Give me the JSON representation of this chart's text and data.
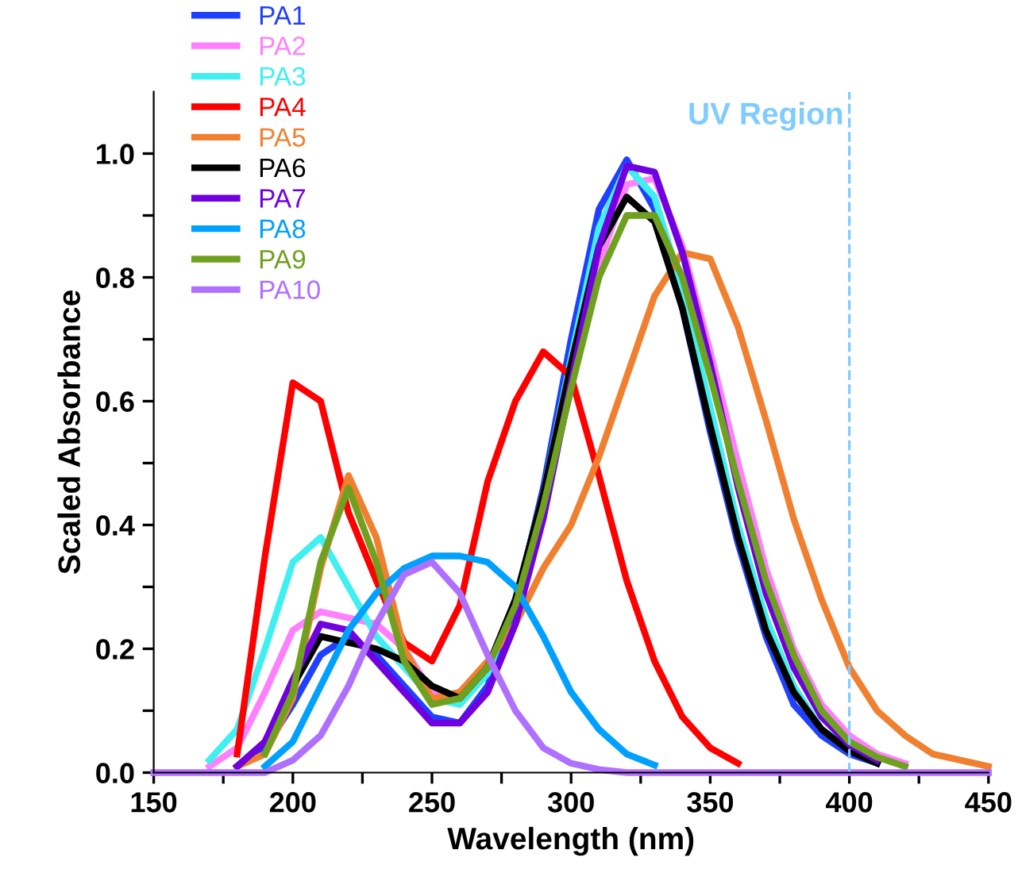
{
  "chart_data": {
    "type": "line",
    "xlabel": "Wavelength (nm)",
    "ylabel": "Scaled Absorbance",
    "x": [
      150,
      160,
      170,
      180,
      190,
      200,
      210,
      220,
      230,
      240,
      250,
      260,
      270,
      280,
      290,
      300,
      310,
      320,
      330,
      340,
      350,
      360,
      370,
      380,
      390,
      400,
      410,
      420,
      430,
      440,
      450
    ],
    "series": [
      {
        "name": "PA1",
        "color": "#2040ff",
        "values": [
          null,
          null,
          null,
          0.01,
          0.04,
          0.11,
          0.19,
          0.22,
          0.19,
          0.14,
          0.09,
          0.08,
          0.14,
          0.27,
          0.46,
          0.7,
          0.91,
          0.99,
          0.91,
          0.75,
          0.55,
          0.37,
          0.22,
          0.11,
          0.06,
          0.03,
          0.015,
          null,
          null,
          null,
          null
        ]
      },
      {
        "name": "PA2",
        "color": "#ff80ff",
        "values": [
          null,
          null,
          0.01,
          0.04,
          0.13,
          0.23,
          0.26,
          0.25,
          0.24,
          0.2,
          0.13,
          0.12,
          0.17,
          0.28,
          0.43,
          0.62,
          0.82,
          0.95,
          0.96,
          0.85,
          0.68,
          0.5,
          0.33,
          0.2,
          0.11,
          0.06,
          0.03,
          0.015,
          null,
          null,
          null
        ]
      },
      {
        "name": "PA3",
        "color": "#40f0f0",
        "values": [
          null,
          null,
          0.02,
          0.07,
          0.2,
          0.34,
          0.38,
          0.3,
          0.22,
          0.17,
          0.12,
          0.11,
          0.16,
          0.28,
          0.45,
          0.67,
          0.88,
          0.98,
          0.93,
          0.78,
          0.59,
          0.4,
          0.25,
          0.14,
          0.07,
          0.04,
          0.02,
          null,
          null,
          null,
          null
        ]
      },
      {
        "name": "PA4",
        "color": "#ff0000",
        "values": [
          null,
          null,
          null,
          0.03,
          0.35,
          0.63,
          0.6,
          0.42,
          0.31,
          0.21,
          0.18,
          0.27,
          0.47,
          0.6,
          0.68,
          0.64,
          0.48,
          0.31,
          0.18,
          0.09,
          0.04,
          0.015,
          null,
          null,
          null,
          null,
          null,
          null,
          null,
          null,
          null
        ]
      },
      {
        "name": "PA5",
        "color": "#f08030",
        "values": [
          null,
          null,
          null,
          0.01,
          0.03,
          0.12,
          0.33,
          0.48,
          0.38,
          0.2,
          0.12,
          0.13,
          0.18,
          0.24,
          0.33,
          0.4,
          0.51,
          0.64,
          0.77,
          0.84,
          0.83,
          0.72,
          0.57,
          0.41,
          0.28,
          0.17,
          0.1,
          0.06,
          0.03,
          0.02,
          0.01
        ]
      },
      {
        "name": "PA6",
        "color": "#000000",
        "values": [
          null,
          null,
          null,
          0.01,
          0.05,
          0.14,
          0.22,
          0.21,
          0.2,
          0.18,
          0.14,
          0.12,
          0.17,
          0.28,
          0.45,
          0.66,
          0.85,
          0.93,
          0.89,
          0.75,
          0.56,
          0.38,
          0.23,
          0.13,
          0.07,
          0.035,
          0.015,
          null,
          null,
          null,
          null
        ]
      },
      {
        "name": "PA7",
        "color": "#7000e0",
        "values": [
          null,
          null,
          null,
          0.01,
          0.05,
          0.15,
          0.24,
          0.23,
          0.18,
          0.13,
          0.08,
          0.08,
          0.13,
          0.24,
          0.41,
          0.63,
          0.85,
          0.98,
          0.97,
          0.84,
          0.66,
          0.46,
          0.29,
          0.17,
          0.09,
          0.045,
          0.02,
          null,
          null,
          null,
          null
        ]
      },
      {
        "name": "PA8",
        "color": "#00a0ff",
        "values": [
          null,
          null,
          null,
          null,
          0.01,
          0.05,
          0.14,
          0.23,
          0.29,
          0.33,
          0.35,
          0.35,
          0.34,
          0.3,
          0.22,
          0.13,
          0.07,
          0.03,
          0.012,
          null,
          null,
          null,
          null,
          null,
          null,
          null,
          null,
          null,
          null,
          null,
          null
        ]
      },
      {
        "name": "PA9",
        "color": "#70a020",
        "values": [
          null,
          null,
          null,
          null,
          0.03,
          0.13,
          0.34,
          0.46,
          0.34,
          0.18,
          0.11,
          0.12,
          0.17,
          0.27,
          0.43,
          0.62,
          0.8,
          0.9,
          0.9,
          0.8,
          0.64,
          0.47,
          0.31,
          0.19,
          0.1,
          0.05,
          0.025,
          0.01,
          null,
          null,
          null
        ]
      },
      {
        "name": "PA10",
        "color": "#b070ff",
        "values": [
          0,
          0,
          0,
          0,
          0,
          0.02,
          0.06,
          0.14,
          0.24,
          0.32,
          0.34,
          0.29,
          0.19,
          0.1,
          0.04,
          0.015,
          0.005,
          0,
          0,
          0,
          0,
          0,
          0,
          0,
          0,
          0,
          0,
          0,
          0,
          0,
          0
        ]
      }
    ],
    "xlim": [
      150,
      450
    ],
    "xticks": [
      150,
      {
        "value": 175,
        "label": null
      },
      200,
      {
        "value": 225,
        "label": null
      },
      250,
      {
        "value": 275,
        "label": null
      },
      300,
      {
        "value": 325,
        "label": null
      },
      350,
      {
        "value": 375,
        "label": null
      },
      400,
      {
        "value": 425,
        "label": null
      },
      450
    ],
    "ylim": [
      0,
      1.1
    ],
    "yticks": [
      {
        "value": 0,
        "label": "0.0"
      },
      {
        "value": 0.1,
        "label": null
      },
      0.2,
      {
        "value": 0.3,
        "label": null
      },
      0.4,
      {
        "value": 0.5,
        "label": null
      },
      0.6,
      {
        "value": 0.7,
        "label": null
      },
      0.8,
      {
        "value": 0.9,
        "label": null
      },
      {
        "value": 1,
        "label": "1.0"
      }
    ],
    "ref_lines": [
      {
        "axis": "x",
        "value": 400,
        "label": "UV Region",
        "color": "#80ccff",
        "line_style": "dashed"
      }
    ],
    "legend": "top left",
    "grid": false,
    "marker": "none",
    "line_style": "solid"
  }
}
